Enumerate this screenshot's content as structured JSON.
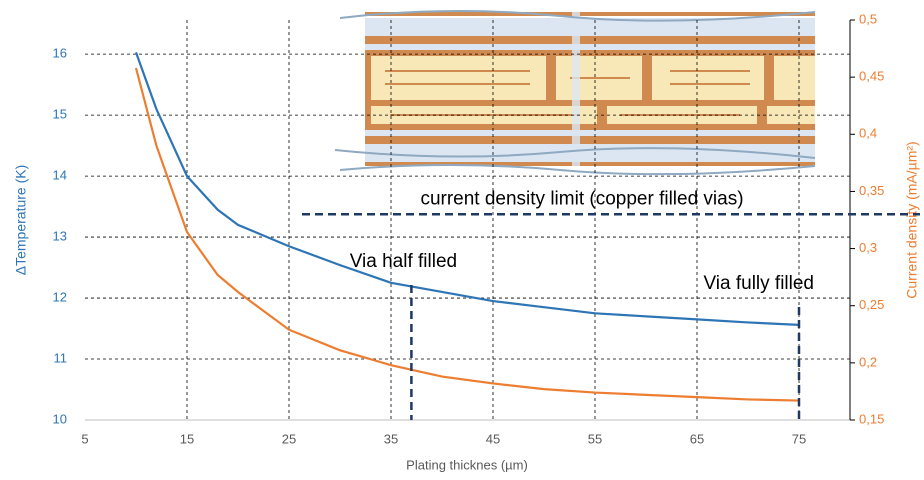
{
  "chart_data": {
    "type": "line",
    "xlabel": "Plating thicknes (µm)",
    "ylabel": "ΔTemperature (K)",
    "y2label": "Current density (mA/µm²)",
    "xlim": [
      5,
      80
    ],
    "xticks": [
      5,
      15,
      25,
      35,
      45,
      55,
      65,
      75
    ],
    "ylim": [
      10,
      16.56
    ],
    "yticks": [
      10,
      11,
      12,
      13,
      14,
      15,
      16
    ],
    "y2lim": [
      0.15,
      0.5
    ],
    "y2ticks": [
      {
        "value": 0.15,
        "label": "0,15"
      },
      {
        "value": 0.2,
        "label": "0,2"
      },
      {
        "value": 0.25,
        "label": "0,25"
      },
      {
        "value": 0.3,
        "label": "0,3"
      },
      {
        "value": 0.35,
        "label": "0,35"
      },
      {
        "value": 0.4,
        "label": "0,4"
      },
      {
        "value": 0.45,
        "label": "0,45"
      },
      {
        "value": 0.5,
        "label": "0,5"
      }
    ],
    "grid": true,
    "x": [
      10,
      12,
      15,
      18,
      20,
      25,
      30,
      35,
      40,
      45,
      50,
      55,
      60,
      65,
      70,
      75
    ],
    "series": [
      {
        "color": "#2e75b6",
        "values": [
          16.03,
          15.1,
          14.0,
          13.45,
          13.2,
          12.85,
          12.54,
          12.25,
          12.1,
          11.95,
          11.85,
          11.75,
          11.7,
          11.65,
          11.6,
          11.56
        ]
      },
      {
        "color": "#ed7d31",
        "axis": "y2",
        "values": [
          0.458,
          0.39,
          0.3145,
          0.277,
          0.262,
          0.229,
          0.211,
          0.198,
          0.188,
          0.182,
          0.177,
          0.174,
          0.172,
          0.17,
          0.168,
          0.167
        ]
      }
    ],
    "annotations": [
      {
        "text": "current density limit (copper filled vias)",
        "y": 0.33,
        "axis": "y2"
      },
      {
        "text": "Via half filled",
        "x": 37
      },
      {
        "text": "Via fully filled",
        "x": 75
      }
    ]
  }
}
